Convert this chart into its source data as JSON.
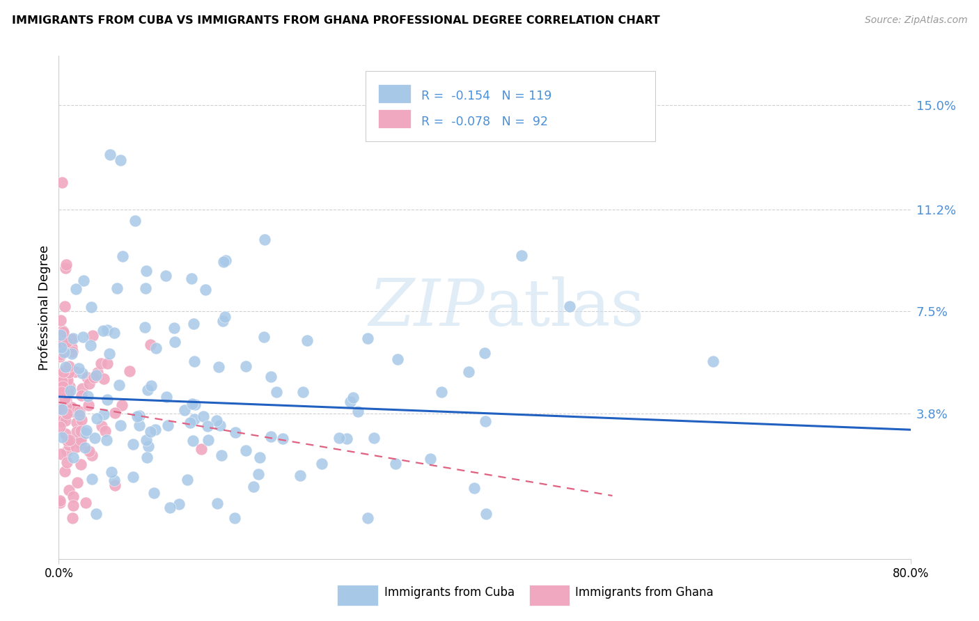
{
  "title": "IMMIGRANTS FROM CUBA VS IMMIGRANTS FROM GHANA PROFESSIONAL DEGREE CORRELATION CHART",
  "source": "Source: ZipAtlas.com",
  "ylabel": "Professional Degree",
  "ytick_labels": [
    "15.0%",
    "11.2%",
    "7.5%",
    "3.8%"
  ],
  "ytick_values": [
    0.15,
    0.112,
    0.075,
    0.038
  ],
  "xmin": 0.0,
  "xmax": 0.8,
  "ymin": -0.015,
  "ymax": 0.168,
  "cuba_color": "#a8c8e8",
  "ghana_color": "#f0a8c0",
  "cuba_line_color": "#2060c0",
  "ghana_line_color": "#e06080",
  "watermark_zip": "ZIP",
  "watermark_atlas": "atlas",
  "cuba_R": -0.154,
  "cuba_N": 119,
  "ghana_R": -0.078,
  "ghana_N": 92,
  "cuba_trend_x": [
    0.0,
    0.8
  ],
  "cuba_trend_y": [
    0.044,
    0.032
  ],
  "ghana_trend_x": [
    0.0,
    0.52
  ],
  "ghana_trend_y": [
    0.042,
    0.008
  ],
  "legend_text_color": "#4a90d9",
  "right_tick_color": "#4a90d9",
  "grid_color": "#d0d0d0",
  "spine_color": "#cccccc"
}
